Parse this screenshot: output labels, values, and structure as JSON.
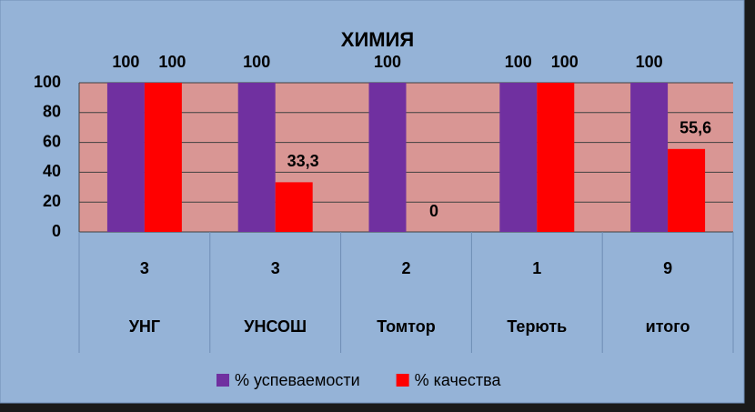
{
  "chart_data": {
    "type": "bar",
    "title": "ХИМИЯ",
    "categories": [
      "УНГ",
      "УНСОШ",
      "Томтор",
      "Терють",
      "итого"
    ],
    "category_counts": [
      3,
      3,
      2,
      1,
      9
    ],
    "series": [
      {
        "name": "% успеваемости",
        "color": "#7030a0",
        "values": [
          100,
          100,
          100,
          100,
          100
        ]
      },
      {
        "name": "% качества",
        "color": "#ff0000",
        "values": [
          100,
          33.3,
          0,
          100,
          55.6
        ],
        "value_labels": [
          "100",
          "33,3",
          "0",
          "100",
          "55,6"
        ]
      }
    ],
    "ylim": [
      0,
      100
    ],
    "yticks": [
      0,
      20,
      40,
      60,
      80,
      100
    ],
    "grid": true,
    "legend": "bottom"
  }
}
